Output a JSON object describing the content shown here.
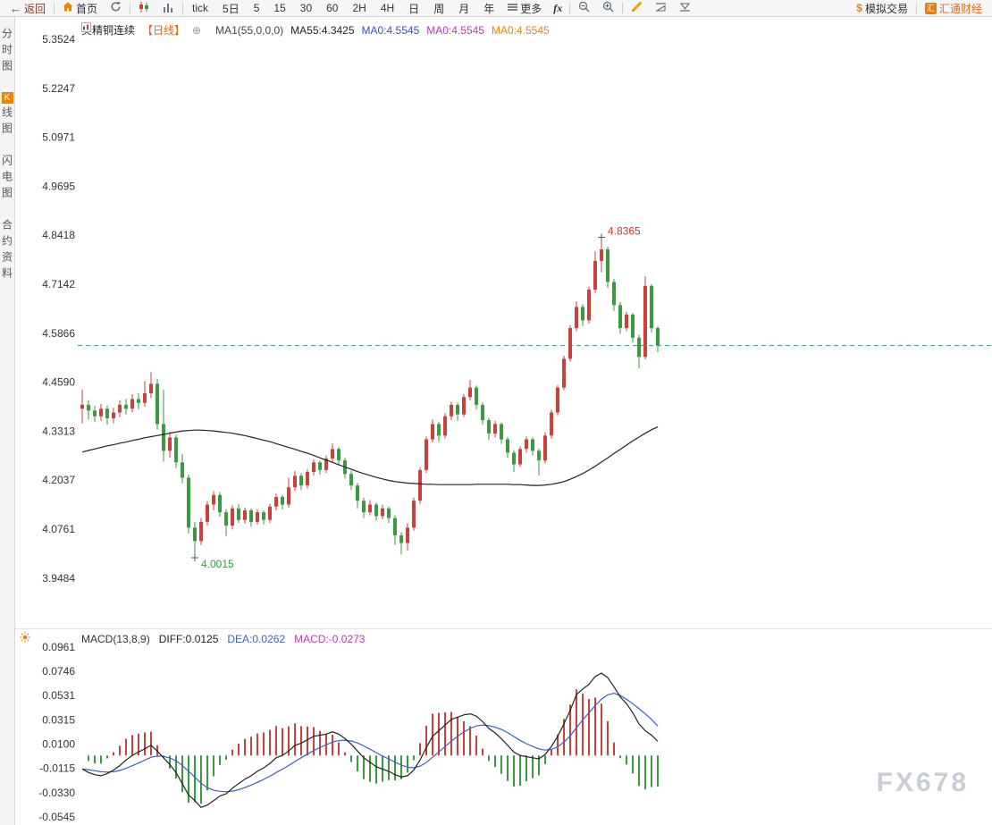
{
  "toolbar": {
    "back": "返回",
    "home": "首页",
    "tick": "tick",
    "d5": "5日",
    "periods": [
      "5",
      "15",
      "30",
      "60",
      "2H",
      "4H",
      "日",
      "周",
      "月",
      "年"
    ],
    "more": "更多",
    "fx": "fx",
    "sim_currency": "$",
    "sim_trade": "模拟交易",
    "brand_initial": "汇",
    "brand": "汇通财经"
  },
  "sidebar": {
    "items": [
      {
        "badge": "",
        "label": "分时图"
      },
      {
        "badge": "K",
        "label": "线图"
      },
      {
        "badge": "",
        "label": "闪电图"
      },
      {
        "badge": "",
        "label": "合约资料"
      }
    ]
  },
  "main_header": {
    "symbol": "美精铜连续",
    "period_tag": "【日线】",
    "add_icon": "⊕",
    "ma_param": "MA1(55,0,0,0)",
    "ma55": "MA55:4.3425",
    "ma0_blue": "MA0:4.5545",
    "ma0_magenta": "MA0:4.5545",
    "ma0_orange": "MA0:4.5545"
  },
  "macd_header": {
    "title": "MACD(13,8,9)",
    "diff": "DIFF:0.0125",
    "dea": "DEA:0.0262",
    "macd": "MACD:-0.0273"
  },
  "watermark": "FX678",
  "colors": {
    "up": "#c9413a",
    "down": "#3a9a3e",
    "ma55": "#222222",
    "diff_line": "#222222",
    "dea_line": "#3a5fc8",
    "last_price_line": "#2d9e8c",
    "axis_text": "#333333",
    "annotation_red": "#cc3333",
    "annotation_green": "#2f9e3f",
    "accent_orange": "#f08200",
    "header_blue": "#3355cc",
    "header_magenta": "#c034c0"
  },
  "chart_data": {
    "type": "candlestick+macd",
    "symbol": "美精铜连续",
    "period": "日线",
    "last_price": 4.5545,
    "price_axis_ticks": [
      5.3524,
      5.2247,
      5.0971,
      4.9695,
      4.8418,
      4.7142,
      4.5866,
      4.459,
      4.3313,
      4.2037,
      4.0761,
      3.9484
    ],
    "macd_axis_ticks": [
      0.0961,
      0.0746,
      0.0531,
      0.0315,
      0.01,
      -0.0115,
      -0.033,
      -0.0545
    ],
    "annotations": [
      {
        "text": "4.8365",
        "price": 4.8365,
        "index": 83,
        "color": "red"
      },
      {
        "text": "4.0015",
        "price": 4.0015,
        "index": 18,
        "color": "green"
      }
    ],
    "candles": [
      [
        4.39,
        4.44,
        4.352,
        4.4
      ],
      [
        4.4,
        4.412,
        4.362,
        4.385
      ],
      [
        4.385,
        4.398,
        4.355,
        4.37
      ],
      [
        4.37,
        4.402,
        4.358,
        4.39
      ],
      [
        4.39,
        4.398,
        4.348,
        4.365
      ],
      [
        4.365,
        4.392,
        4.352,
        4.38
      ],
      [
        4.38,
        4.412,
        4.368,
        4.4
      ],
      [
        4.4,
        4.415,
        4.375,
        4.39
      ],
      [
        4.39,
        4.428,
        4.38,
        4.415
      ],
      [
        4.415,
        4.43,
        4.388,
        4.405
      ],
      [
        4.405,
        4.462,
        4.395,
        4.43
      ],
      [
        4.43,
        4.485,
        4.418,
        4.455
      ],
      [
        4.455,
        4.468,
        4.335,
        4.35
      ],
      [
        4.35,
        4.44,
        4.252,
        4.28
      ],
      [
        4.28,
        4.33,
        4.262,
        4.315
      ],
      [
        4.315,
        4.322,
        4.235,
        4.25
      ],
      [
        4.25,
        4.272,
        4.195,
        4.21
      ],
      [
        4.21,
        4.218,
        4.065,
        4.08
      ],
      [
        4.08,
        4.095,
        4.0015,
        4.045
      ],
      [
        4.045,
        4.105,
        4.035,
        4.095
      ],
      [
        4.095,
        4.148,
        4.085,
        4.14
      ],
      [
        4.14,
        4.175,
        4.125,
        4.165
      ],
      [
        4.165,
        4.172,
        4.108,
        4.12
      ],
      [
        4.12,
        4.128,
        4.058,
        4.085
      ],
      [
        4.085,
        4.138,
        4.075,
        4.13
      ],
      [
        4.13,
        4.142,
        4.092,
        4.1
      ],
      [
        4.1,
        4.132,
        4.09,
        4.125
      ],
      [
        4.125,
        4.13,
        4.082,
        4.095
      ],
      [
        4.095,
        4.128,
        4.088,
        4.12
      ],
      [
        4.12,
        4.125,
        4.088,
        4.1
      ],
      [
        4.1,
        4.142,
        4.092,
        4.135
      ],
      [
        4.135,
        4.168,
        4.125,
        4.16
      ],
      [
        4.16,
        4.165,
        4.128,
        4.14
      ],
      [
        4.14,
        4.21,
        4.132,
        4.185
      ],
      [
        4.185,
        4.228,
        4.175,
        4.215
      ],
      [
        4.215,
        4.222,
        4.178,
        4.19
      ],
      [
        4.19,
        4.232,
        4.182,
        4.225
      ],
      [
        4.225,
        4.258,
        4.215,
        4.25
      ],
      [
        4.25,
        4.255,
        4.218,
        4.23
      ],
      [
        4.23,
        4.268,
        4.222,
        4.26
      ],
      [
        4.26,
        4.3,
        4.252,
        4.285
      ],
      [
        4.285,
        4.29,
        4.245,
        4.255
      ],
      [
        4.255,
        4.262,
        4.208,
        4.22
      ],
      [
        4.22,
        4.228,
        4.178,
        4.19
      ],
      [
        4.19,
        4.196,
        4.13,
        4.15
      ],
      [
        4.15,
        4.158,
        4.105,
        4.12
      ],
      [
        4.12,
        4.152,
        4.112,
        4.14
      ],
      [
        4.14,
        4.145,
        4.098,
        4.11
      ],
      [
        4.11,
        4.14,
        4.102,
        4.13
      ],
      [
        4.13,
        4.135,
        4.092,
        4.105
      ],
      [
        4.105,
        4.112,
        4.035,
        4.06
      ],
      [
        4.06,
        4.068,
        4.01,
        4.04
      ],
      [
        4.04,
        4.092,
        4.02,
        4.08
      ],
      [
        4.08,
        4.158,
        4.072,
        4.15
      ],
      [
        4.15,
        4.238,
        4.142,
        4.23
      ],
      [
        4.23,
        4.318,
        4.222,
        4.31
      ],
      [
        4.31,
        4.362,
        4.302,
        4.35
      ],
      [
        4.35,
        4.356,
        4.305,
        4.32
      ],
      [
        4.32,
        4.378,
        4.312,
        4.37
      ],
      [
        4.37,
        4.408,
        4.36,
        4.4
      ],
      [
        4.4,
        4.406,
        4.358,
        4.375
      ],
      [
        4.375,
        4.428,
        4.368,
        4.42
      ],
      [
        4.42,
        4.465,
        4.412,
        4.445
      ],
      [
        4.445,
        4.45,
        4.388,
        4.4
      ],
      [
        4.4,
        4.406,
        4.348,
        4.36
      ],
      [
        4.36,
        4.366,
        4.308,
        4.325
      ],
      [
        4.325,
        4.358,
        4.315,
        4.35
      ],
      [
        4.35,
        4.354,
        4.298,
        4.31
      ],
      [
        4.31,
        4.316,
        4.262,
        4.275
      ],
      [
        4.275,
        4.282,
        4.225,
        4.245
      ],
      [
        4.245,
        4.292,
        4.238,
        4.285
      ],
      [
        4.285,
        4.318,
        4.275,
        4.31
      ],
      [
        4.31,
        4.315,
        4.268,
        4.28
      ],
      [
        4.28,
        4.286,
        4.215,
        4.255
      ],
      [
        4.255,
        4.328,
        4.248,
        4.32
      ],
      [
        4.32,
        4.388,
        4.312,
        4.38
      ],
      [
        4.38,
        4.452,
        4.372,
        4.445
      ],
      [
        4.445,
        4.528,
        4.438,
        4.52
      ],
      [
        4.52,
        4.608,
        4.512,
        4.6
      ],
      [
        4.6,
        4.67,
        4.592,
        4.655
      ],
      [
        4.655,
        4.662,
        4.605,
        4.62
      ],
      [
        4.62,
        4.708,
        4.612,
        4.7
      ],
      [
        4.7,
        4.8,
        4.692,
        4.775
      ],
      [
        4.775,
        4.8365,
        4.745,
        4.805
      ],
      [
        4.805,
        4.812,
        4.705,
        4.72
      ],
      [
        4.72,
        4.728,
        4.645,
        4.66
      ],
      [
        4.66,
        4.668,
        4.585,
        4.6
      ],
      [
        4.6,
        4.642,
        4.592,
        4.635
      ],
      [
        4.635,
        4.64,
        4.562,
        4.575
      ],
      [
        4.575,
        4.582,
        4.495,
        4.525
      ],
      [
        4.525,
        4.735,
        4.518,
        4.71
      ],
      [
        4.71,
        4.715,
        4.588,
        4.6
      ],
      [
        4.6,
        4.605,
        4.538,
        4.5545
      ]
    ],
    "ma55": [
      4.277,
      4.281,
      4.285,
      4.289,
      4.293,
      4.296,
      4.3,
      4.303,
      4.307,
      4.31,
      4.314,
      4.317,
      4.32,
      4.323,
      4.326,
      4.329,
      4.332,
      4.333,
      4.334,
      4.334,
      4.333,
      4.332,
      4.33,
      4.328,
      4.326,
      4.323,
      4.32,
      4.316,
      4.312,
      4.308,
      4.304,
      4.299,
      4.294,
      4.289,
      4.284,
      4.279,
      4.274,
      4.268,
      4.262,
      4.256,
      4.25,
      4.244,
      4.238,
      4.232,
      4.226,
      4.221,
      4.216,
      4.211,
      4.207,
      4.203,
      4.2,
      4.198,
      4.196,
      4.195,
      4.194,
      4.193,
      4.193,
      4.192,
      4.192,
      4.192,
      4.192,
      4.192,
      4.192,
      4.193,
      4.193,
      4.193,
      4.193,
      4.193,
      4.193,
      4.192,
      4.192,
      4.191,
      4.19,
      4.19,
      4.191,
      4.193,
      4.196,
      4.2,
      4.206,
      4.213,
      4.221,
      4.23,
      4.24,
      4.251,
      4.262,
      4.273,
      4.284,
      4.295,
      4.306,
      4.316,
      4.326,
      4.335,
      4.3425
    ],
    "macd": {
      "params": "13,8,9",
      "diff": [
        -0.012,
        -0.015,
        -0.017,
        -0.018,
        -0.016,
        -0.013,
        -0.009,
        -0.004,
        0.0,
        0.003,
        0.006,
        0.009,
        0.004,
        -0.002,
        -0.008,
        -0.015,
        -0.025,
        -0.035,
        -0.04,
        -0.046,
        -0.044,
        -0.04,
        -0.036,
        -0.034,
        -0.029,
        -0.025,
        -0.021,
        -0.018,
        -0.014,
        -0.011,
        -0.007,
        -0.002,
        0.0,
        0.004,
        0.009,
        0.011,
        0.014,
        0.017,
        0.018,
        0.019,
        0.021,
        0.019,
        0.015,
        0.01,
        0.004,
        -0.002,
        -0.006,
        -0.01,
        -0.012,
        -0.014,
        -0.017,
        -0.019,
        -0.018,
        -0.013,
        -0.004,
        0.007,
        0.017,
        0.022,
        0.027,
        0.032,
        0.034,
        0.036,
        0.037,
        0.035,
        0.03,
        0.024,
        0.02,
        0.015,
        0.009,
        0.003,
        0.0,
        -0.001,
        -0.002,
        -0.003,
        0.001,
        0.008,
        0.017,
        0.028,
        0.04,
        0.054,
        0.059,
        0.063,
        0.07,
        0.073,
        0.069,
        0.061,
        0.052,
        0.046,
        0.038,
        0.028,
        0.022,
        0.018,
        0.0125
      ],
      "dea": [
        -0.012,
        -0.0126,
        -0.0135,
        -0.0144,
        -0.0147,
        -0.0144,
        -0.0133,
        -0.0114,
        -0.0091,
        -0.0067,
        -0.0042,
        -0.0016,
        -0.0005,
        -0.0008,
        -0.0022,
        -0.0048,
        -0.0088,
        -0.014,
        -0.0192,
        -0.0246,
        -0.0285,
        -0.0308,
        -0.0318,
        -0.0322,
        -0.0316,
        -0.0303,
        -0.0284,
        -0.0263,
        -0.0238,
        -0.0212,
        -0.0184,
        -0.0151,
        -0.0121,
        -0.0089,
        -0.0053,
        -0.002,
        0.0012,
        0.0044,
        0.0071,
        0.0095,
        0.0118,
        0.0132,
        0.0136,
        0.0129,
        0.0111,
        0.0085,
        0.0056,
        0.0025,
        -0.0004,
        -0.0031,
        -0.0059,
        -0.0085,
        -0.0104,
        -0.0109,
        -0.0095,
        -0.0062,
        -0.0016,
        0.0031,
        0.0079,
        0.0127,
        0.017,
        0.0208,
        0.024,
        0.0262,
        0.027,
        0.0264,
        0.0251,
        0.0231,
        0.0203,
        0.0168,
        0.0134,
        0.0105,
        0.008,
        0.0058,
        0.0048,
        0.0054,
        0.0077,
        0.0118,
        0.0174,
        0.0247,
        0.0316,
        0.0379,
        0.0443,
        0.05,
        0.0538,
        0.0552,
        0.0532,
        0.05,
        0.046,
        0.0415,
        0.037,
        0.032,
        0.0262
      ]
    }
  }
}
